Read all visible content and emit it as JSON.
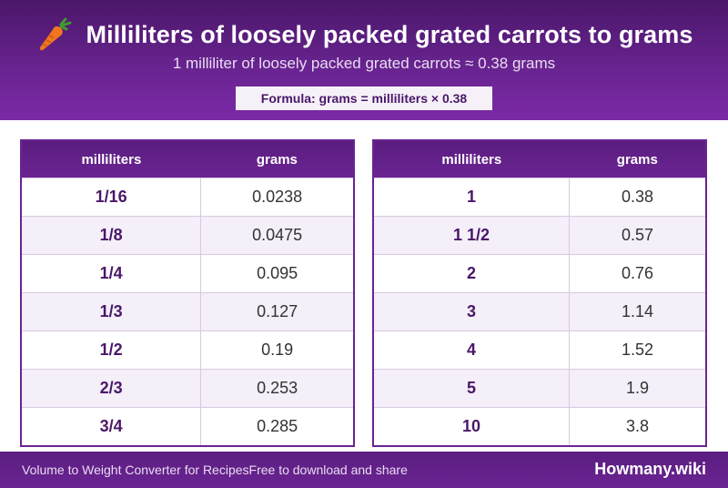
{
  "header": {
    "icon": "carrot-icon",
    "title": "Milliliters of loosely packed grated carrots to grams",
    "subtitle": "1 milliliter of loosely packed grated carrots ≈ 0.38 grams",
    "formula": "Formula: grams = milliliters × 0.38"
  },
  "tables": [
    {
      "col_ml": "milliliters",
      "col_g": "grams",
      "rows": [
        {
          "ml": "1/16",
          "g": "0.0238"
        },
        {
          "ml": "1/8",
          "g": "0.0475"
        },
        {
          "ml": "1/4",
          "g": "0.095"
        },
        {
          "ml": "1/3",
          "g": "0.127"
        },
        {
          "ml": "1/2",
          "g": "0.19"
        },
        {
          "ml": "2/3",
          "g": "0.253"
        },
        {
          "ml": "3/4",
          "g": "0.285"
        }
      ]
    },
    {
      "col_ml": "milliliters",
      "col_g": "grams",
      "rows": [
        {
          "ml": "1",
          "g": "0.38"
        },
        {
          "ml": "1 1/2",
          "g": "0.57"
        },
        {
          "ml": "2",
          "g": "0.76"
        },
        {
          "ml": "3",
          "g": "1.14"
        },
        {
          "ml": "4",
          "g": "1.52"
        },
        {
          "ml": "5",
          "g": "1.9"
        },
        {
          "ml": "10",
          "g": "3.8"
        }
      ]
    }
  ],
  "footer": {
    "left_text": "Volume to Weight Converter for Recipes",
    "left_text2": "Free to download and share",
    "brand": "Howmany.wiki"
  },
  "colors": {
    "primary": "#6a2492",
    "dark": "#4a1769",
    "row_alt": "#f4eff8"
  }
}
